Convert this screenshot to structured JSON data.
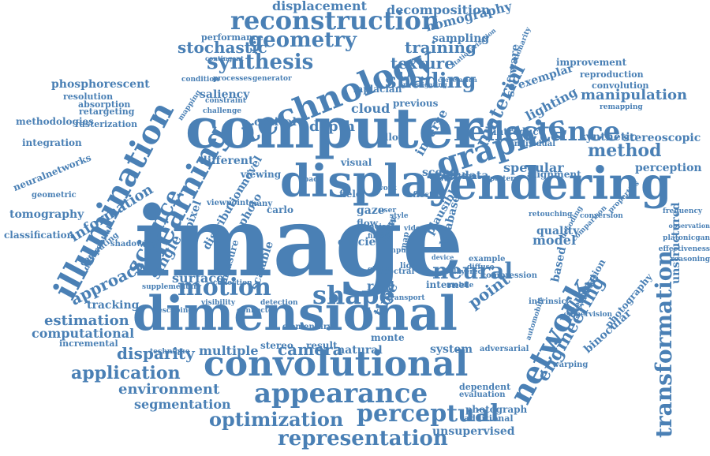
{
  "theme": {
    "word_color": "#4a80b5",
    "background": "#ffffff"
  },
  "words": [
    "image",
    "dimensional",
    "computer",
    "rendering",
    "display",
    "convolutional",
    "appearance",
    "network",
    "technology",
    "illumination",
    "learning",
    "science",
    "graphic",
    "reflectance",
    "transformation",
    "reconstruction",
    "shape",
    "perceptual",
    "representation",
    "optimization",
    "motion",
    "neural",
    "material",
    "geometry",
    "synthesis",
    "shading",
    "texture",
    "method",
    "engineering",
    "manipulation",
    "estimation",
    "application",
    "disparity",
    "approach",
    "information",
    "camera",
    "point",
    "specular",
    "environment",
    "segmentation",
    "computational",
    "displacement",
    "decomposition",
    "homography",
    "stochastic",
    "training",
    "volume",
    "model",
    "depth",
    "cloud",
    "single",
    "surface",
    "multiple",
    "system",
    "natural",
    "tracking",
    "lighting",
    "synthetic",
    "stereoscopic",
    "perception",
    "phosphorescent",
    "methodologies",
    "integration",
    "tomography",
    "classification",
    "neuralnetworks",
    "unstructured",
    "unsupervised",
    "binocular",
    "interpolation",
    "photography",
    "improvement",
    "reproduction",
    "convolution",
    "quality",
    "based",
    "software",
    "exemplar",
    "saliency",
    "optical",
    "sampling",
    "performance",
    "stereo",
    "monte",
    "result",
    "internet",
    "real",
    "time",
    "view",
    "novel",
    "photo",
    "pixel",
    "scene",
    "data",
    "visual",
    "field",
    "efficient",
    "algorithm",
    "alignment",
    "retargeting",
    "rasterization",
    "resolution",
    "absorption",
    "geometric",
    "shadowing",
    "computing",
    "differential",
    "incremental",
    "escaping",
    "elementary",
    "visibility",
    "connected",
    "detection",
    "collection",
    "supplementary",
    "technique",
    "photograph",
    "additional",
    "dependent",
    "evaluation",
    "adversarial",
    "warping",
    "intrinsic",
    "compression",
    "supervision",
    "automobile",
    "platonicgan",
    "effectiveness",
    "reasoning",
    "observation",
    "frequency",
    "remapping",
    "properties",
    "conversion",
    "retouching",
    "decoding",
    "comparison",
    "stationarity",
    "correlation",
    "investigating",
    "stationarization",
    "contingent",
    "condition",
    "processes",
    "generator",
    "constraint",
    "challenge",
    "mapping",
    "previous",
    "laplacian",
    "viewpoint",
    "distribution",
    "measure",
    "scalable",
    "many",
    "carlo",
    "gaze",
    "flow",
    "noise",
    "filter",
    "input",
    "light",
    "map",
    "plausible",
    "database",
    "introduce",
    "individual",
    "pattern",
    "layered",
    "example",
    "diffuse",
    "mobile",
    "space",
    "inverse",
    "effect",
    "allow",
    "work",
    "user",
    "style",
    "video",
    "layer",
    "device",
    "global",
    "spectral",
    "transport",
    "different",
    "viewing"
  ]
}
